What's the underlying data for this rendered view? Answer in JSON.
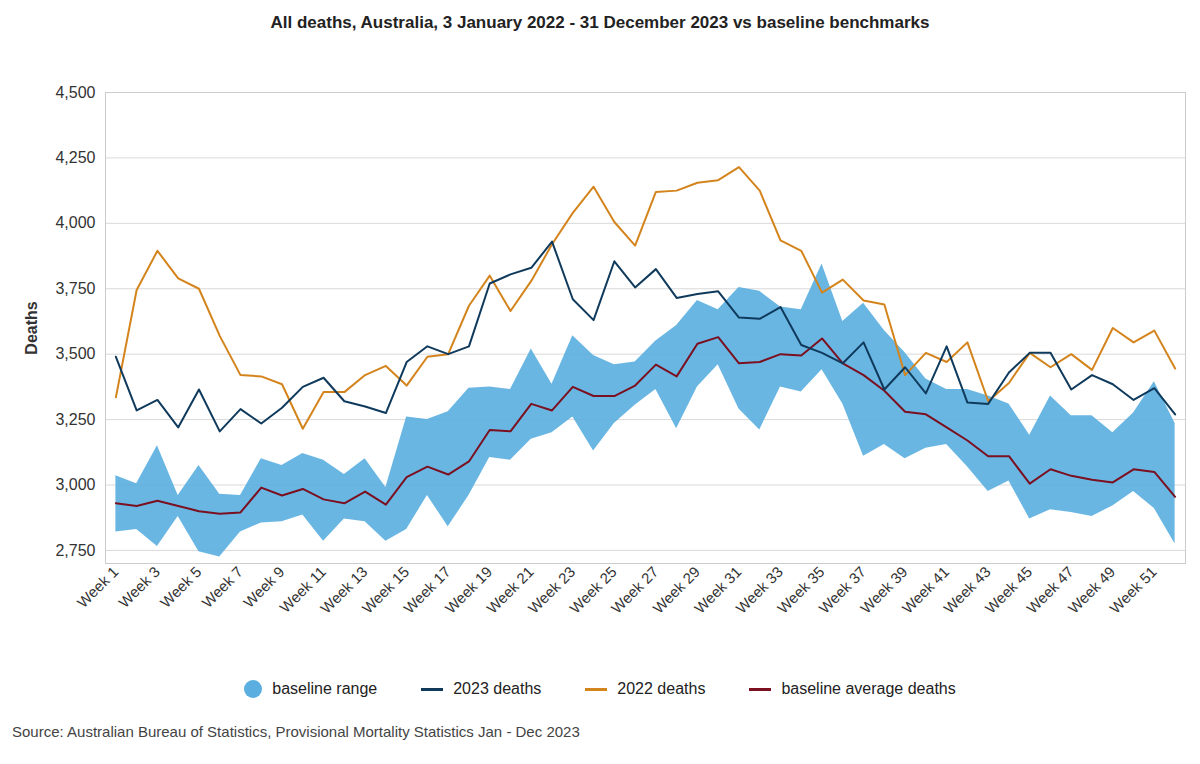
{
  "chart_data": {
    "type": "line",
    "title": "All deaths, Australia, 3 January 2022 - 31 December 2023 vs baseline benchmarks",
    "caption": "Source: Australian Bureau of Statistics, Provisional Mortality Statistics Jan - Dec 2023",
    "y_label": "Deaths",
    "categories": [
      "Week 1",
      null,
      "Week 3",
      null,
      "Week 5",
      null,
      "Week 7",
      null,
      "Week 9",
      null,
      "Week 11",
      null,
      "Week 13",
      null,
      "Week 15",
      null,
      "Week 17",
      null,
      "Week 19",
      null,
      "Week 21",
      null,
      "Week 23",
      null,
      "Week 25",
      null,
      "Week 27",
      null,
      "Week 29",
      null,
      "Week 31",
      null,
      "Week 33",
      null,
      "Week 35",
      null,
      "Week 37",
      null,
      "Week 39",
      null,
      "Week 41",
      null,
      "Week 43",
      null,
      "Week 45",
      null,
      "Week 47",
      null,
      "Week 49",
      null,
      "Week 51",
      null
    ],
    "series": [
      {
        "name": "baseline range",
        "type": "area",
        "color": "#5aaee0",
        "low": [
          2820,
          2830,
          2765,
          2880,
          2745,
          2725,
          2820,
          2855,
          2860,
          2885,
          2785,
          2870,
          2860,
          2785,
          2830,
          2960,
          2840,
          2960,
          3105,
          3095,
          3175,
          3200,
          3260,
          3130,
          3235,
          3305,
          3365,
          3215,
          3375,
          3460,
          3290,
          3210,
          3375,
          3355,
          3440,
          3310,
          3110,
          3155,
          3100,
          3140,
          3155,
          3070,
          2975,
          3015,
          2870,
          2905,
          2895,
          2880,
          2920,
          2975,
          2910,
          2775
        ],
        "high": [
          3035,
          3005,
          3150,
          2960,
          3075,
          2965,
          2960,
          3100,
          3075,
          3120,
          3095,
          3040,
          3100,
          2990,
          3260,
          3250,
          3280,
          3370,
          3375,
          3365,
          3520,
          3385,
          3570,
          3495,
          3460,
          3470,
          3550,
          3610,
          3705,
          3670,
          3755,
          3740,
          3680,
          3670,
          3845,
          3625,
          3695,
          3590,
          3505,
          3405,
          3365,
          3365,
          3340,
          3310,
          3190,
          3340,
          3265,
          3265,
          3200,
          3275,
          3395,
          3235
        ]
      },
      {
        "name": "2023 deaths",
        "type": "line",
        "color": "#0f3a5c",
        "values": [
          3490,
          3285,
          3325,
          3220,
          3365,
          3205,
          3290,
          3235,
          3295,
          3375,
          3410,
          3320,
          3300,
          3275,
          3470,
          3530,
          3500,
          3530,
          3770,
          3805,
          3830,
          3930,
          3710,
          3630,
          3855,
          3755,
          3825,
          3715,
          3730,
          3740,
          3640,
          3635,
          3680,
          3535,
          3505,
          3465,
          3545,
          3365,
          3450,
          3350,
          3530,
          3315,
          3310,
          3430,
          3505,
          3505,
          3365,
          3420,
          3385,
          3325,
          3370,
          3270
        ]
      },
      {
        "name": "2022 deaths",
        "type": "line",
        "color": "#d4841c",
        "values": [
          3335,
          3745,
          3895,
          3790,
          3750,
          3570,
          3420,
          3415,
          3385,
          3215,
          3355,
          3355,
          3420,
          3455,
          3380,
          3490,
          3500,
          3685,
          3800,
          3665,
          3780,
          3920,
          4040,
          4140,
          4005,
          3915,
          4120,
          4125,
          4155,
          4165,
          4215,
          4125,
          3935,
          3895,
          3735,
          3785,
          3705,
          3690,
          3420,
          3505,
          3470,
          3545,
          3320,
          3390,
          3505,
          3450,
          3500,
          3440,
          3600,
          3545,
          3590,
          3445
        ]
      },
      {
        "name": "baseline average deaths",
        "type": "line",
        "color": "#7a1020",
        "values": [
          2930,
          2920,
          2940,
          2920,
          2900,
          2890,
          2895,
          2990,
          2960,
          2985,
          2945,
          2930,
          2975,
          2925,
          3030,
          3070,
          3040,
          3090,
          3210,
          3205,
          3310,
          3285,
          3375,
          3340,
          3340,
          3380,
          3460,
          3415,
          3540,
          3565,
          3465,
          3470,
          3500,
          3495,
          3560,
          3465,
          3420,
          3360,
          3280,
          3270,
          3220,
          3170,
          3110,
          3110,
          3005,
          3060,
          3035,
          3020,
          3010,
          3060,
          3050,
          2955
        ]
      }
    ],
    "ylim": [
      2700,
      4500
    ],
    "yticks": [
      {
        "value": 2750,
        "label": "2,750"
      },
      {
        "value": 3000,
        "label": "3,000"
      },
      {
        "value": 3250,
        "label": "3,250"
      },
      {
        "value": 3500,
        "label": "3,500"
      },
      {
        "value": 3750,
        "label": "3,750"
      },
      {
        "value": 4000,
        "label": "4,000"
      },
      {
        "value": 4250,
        "label": "4,250"
      },
      {
        "value": 4500,
        "label": "4,500"
      }
    ],
    "grid": true,
    "legend": "bottom"
  }
}
